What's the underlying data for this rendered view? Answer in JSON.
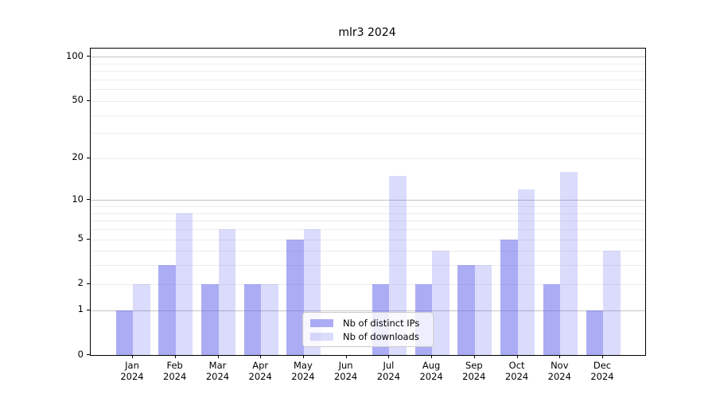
{
  "chart_data": {
    "type": "bar",
    "title": "mlr3 2024",
    "categories": [
      "Jan",
      "Feb",
      "Mar",
      "Apr",
      "May",
      "Jun",
      "Jul",
      "Aug",
      "Sep",
      "Oct",
      "Nov",
      "Dec"
    ],
    "x_tick_second_line": "2024",
    "series": [
      {
        "name": "Nb of distinct IPs",
        "color": "rgba(90,90,235,0.5)",
        "values": [
          1,
          3,
          2,
          2,
          5,
          0,
          2,
          2,
          3,
          5,
          2,
          1
        ]
      },
      {
        "name": "Nb of downloads",
        "color": "rgba(90,90,235,0.22)",
        "values": [
          2,
          8,
          6,
          2,
          6,
          0,
          15,
          4,
          3,
          12,
          16,
          4
        ]
      }
    ],
    "y_axis": {
      "scale": "log1p",
      "tick_labels": [
        "0",
        "1",
        "2",
        "5",
        "10",
        "20",
        "50",
        "100"
      ],
      "tick_values": [
        0,
        1,
        2,
        5,
        10,
        20,
        50,
        100
      ],
      "major_gridlines": [
        1,
        10,
        100
      ],
      "minor_gridlines": [
        2,
        3,
        4,
        5,
        6,
        7,
        8,
        9,
        20,
        30,
        40,
        50,
        60,
        70,
        80,
        90
      ],
      "top_value": 113
    },
    "legend": {
      "position": "lower center"
    },
    "grid": true
  }
}
